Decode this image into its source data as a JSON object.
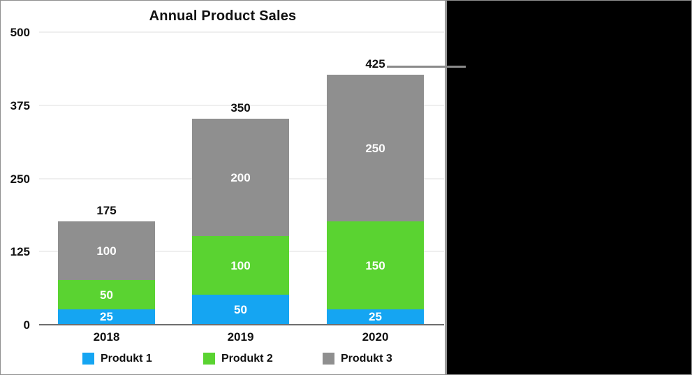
{
  "chart_data": {
    "type": "bar",
    "stacked": true,
    "title": "Annual Product Sales",
    "categories": [
      "2018",
      "2019",
      "2020"
    ],
    "series": [
      {
        "name": "Produkt 1",
        "color": "#15a5f2",
        "values": [
          25,
          50,
          25
        ]
      },
      {
        "name": "Produkt 2",
        "color": "#5ad331",
        "values": [
          50,
          100,
          150
        ]
      },
      {
        "name": "Produkt 3",
        "color": "#8f8f8f",
        "values": [
          100,
          200,
          250
        ]
      }
    ],
    "totals": [
      175,
      350,
      425
    ],
    "y_ticks": [
      0,
      125,
      250,
      375,
      500
    ],
    "ylim": [
      0,
      500
    ],
    "grid": true,
    "legend_position": "bottom",
    "colors": {
      "grid_line": "#efefef",
      "axis_line": "#6e6e6e",
      "bar_label_text": "#ffffff",
      "text": "#111111",
      "panel_background": "#ffffff",
      "page_background": "#000000",
      "callout_line": "#8a8a8a",
      "border": "#909090"
    }
  }
}
